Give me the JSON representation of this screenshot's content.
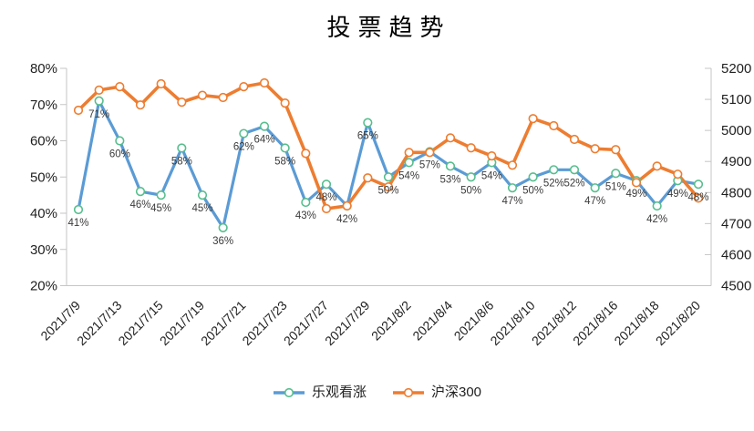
{
  "title": "投票趋势",
  "legend": {
    "items": [
      {
        "label": "乐观看涨",
        "series": "optimistic"
      },
      {
        "label": "沪深300",
        "series": "csi300"
      }
    ]
  },
  "colors": {
    "optimistic_line": "#5B9BD5",
    "optimistic_marker_stroke": "#57BE8D",
    "csi300_line": "#ED7D31",
    "csi300_marker_stroke": "#ED7D31",
    "marker_fill": "#FFFFFF",
    "axis_line": "#C6C6C6",
    "tick_text": "#1F1F1F",
    "data_label_text": "#3B3B3B"
  },
  "chart_data": {
    "type": "line",
    "title": "投票趋势",
    "grid": false,
    "legend_position": "bottom",
    "x": [
      "2021/7/9",
      "2021/7/12",
      "2021/7/13",
      "2021/7/14",
      "2021/7/15",
      "2021/7/16",
      "2021/7/19",
      "2021/7/20",
      "2021/7/21",
      "2021/7/22",
      "2021/7/23",
      "2021/7/26",
      "2021/7/27",
      "2021/7/28",
      "2021/7/29",
      "2021/7/30",
      "2021/8/2",
      "2021/8/3",
      "2021/8/4",
      "2021/8/5",
      "2021/8/6",
      "2021/8/9",
      "2021/8/10",
      "2021/8/11",
      "2021/8/12",
      "2021/8/13",
      "2021/8/16",
      "2021/8/17",
      "2021/8/18",
      "2021/8/19",
      "2021/8/20"
    ],
    "x_tick_labels": [
      "2021/7/9",
      "2021/7/13",
      "2021/7/15",
      "2021/7/19",
      "2021/7/21",
      "2021/7/23",
      "2021/7/27",
      "2021/7/29",
      "2021/8/2",
      "2021/8/4",
      "2021/8/6",
      "2021/8/10",
      "2021/8/12",
      "2021/8/16",
      "2021/8/18",
      "2021/8/20"
    ],
    "series": [
      {
        "name": "乐观看涨",
        "axis": "left",
        "color_key": "optimistic",
        "unit": "%",
        "show_labels": true,
        "values": [
          41,
          71,
          60,
          46,
          45,
          58,
          45,
          36,
          62,
          64,
          58,
          43,
          48,
          42,
          65,
          50,
          54,
          57,
          53,
          50,
          54,
          47,
          50,
          52,
          52,
          47,
          51,
          49,
          42,
          49,
          48
        ]
      },
      {
        "name": "沪深300",
        "axis": "right",
        "color_key": "csi300",
        "unit": "",
        "show_labels": false,
        "values": [
          5065,
          5130,
          5141,
          5082,
          5150,
          5091,
          5113,
          5106,
          5141,
          5153,
          5088,
          4926,
          4748,
          4757,
          4847,
          4818,
          4929,
          4929,
          4976,
          4944,
          4918,
          4888,
          5038,
          5015,
          4971,
          4941,
          4938,
          4832,
          4885,
          4859,
          4782
        ]
      }
    ],
    "left_axis": {
      "min": 20,
      "max": 80,
      "unit": "%",
      "ticks": [
        "80%",
        "70%",
        "60%",
        "50%",
        "40%",
        "30%",
        "20%"
      ]
    },
    "right_axis": {
      "min": 4500,
      "max": 5200,
      "unit": "",
      "ticks": [
        "5200",
        "5100",
        "5000",
        "4900",
        "4800",
        "4700",
        "4600",
        "4500"
      ]
    }
  }
}
